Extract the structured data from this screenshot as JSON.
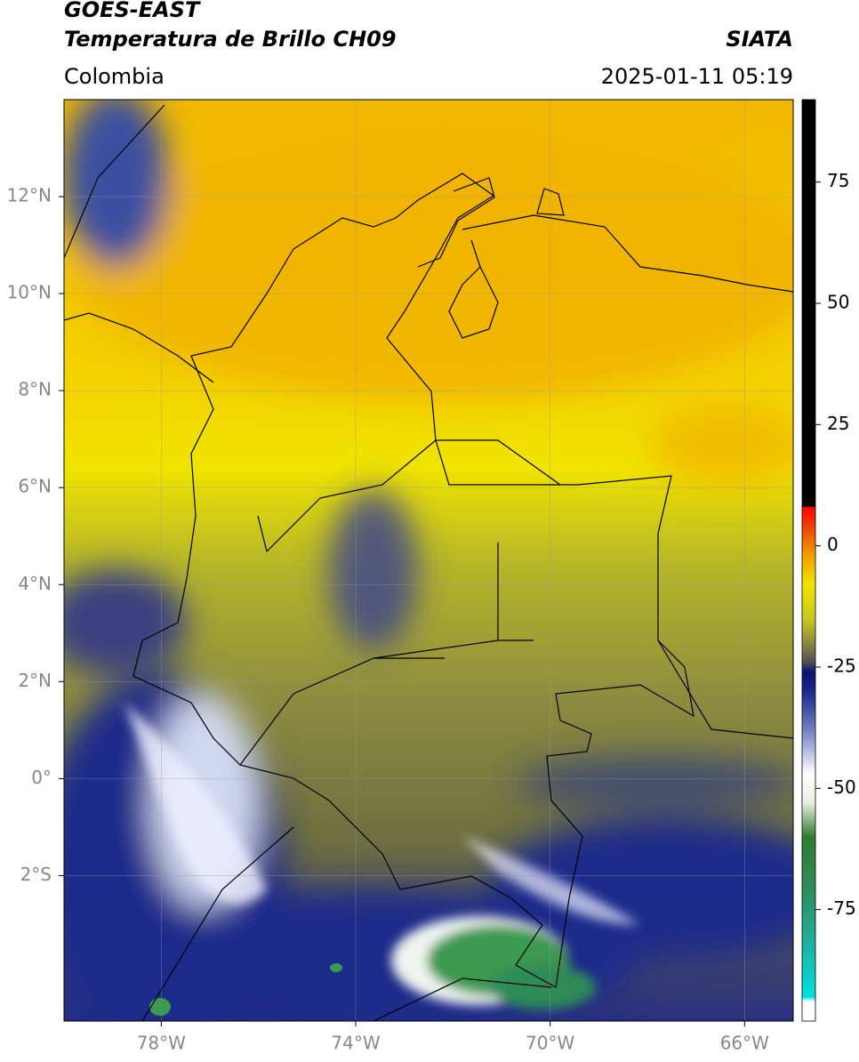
{
  "header": {
    "satellite": "GOES-EAST",
    "product": "Temperatura de Brillo CH09",
    "source": "SIATA",
    "region": "Colombia",
    "datetime": "2025-01-11 05:19"
  },
  "map": {
    "xlim": [
      -80,
      -65
    ],
    "ylim": [
      -5,
      14
    ],
    "xticks": [
      {
        "value": -78,
        "label": "78°W"
      },
      {
        "value": -74,
        "label": "74°W"
      },
      {
        "value": -70,
        "label": "70°W"
      },
      {
        "value": -66,
        "label": "66°W"
      }
    ],
    "yticks": [
      {
        "value": 12,
        "label": "12°N"
      },
      {
        "value": 10,
        "label": "10°N"
      },
      {
        "value": 8,
        "label": "8°N"
      },
      {
        "value": 6,
        "label": "6°N"
      },
      {
        "value": 4,
        "label": "4°N"
      },
      {
        "value": 2,
        "label": "2°N"
      },
      {
        "value": 0,
        "label": "0°"
      },
      {
        "value": -2,
        "label": "2°S"
      }
    ],
    "grid": true
  },
  "colorbar": {
    "clim": [
      -98,
      92
    ],
    "ticks": [
      75,
      50,
      25,
      0,
      -25,
      -50,
      -75
    ],
    "colormap": [
      {
        "value": -98,
        "color": "#ffffff"
      },
      {
        "value": -94,
        "color": "#ffffff"
      },
      {
        "value": -93,
        "color": "#00e0e0"
      },
      {
        "value": -82,
        "color": "#20b0a0"
      },
      {
        "value": -70,
        "color": "#2e8b57"
      },
      {
        "value": -60,
        "color": "#2f7d2f"
      },
      {
        "value": -53,
        "color": "#e8f0e0"
      },
      {
        "value": -47,
        "color": "#ffffff"
      },
      {
        "value": -38,
        "color": "#7080c0"
      },
      {
        "value": -30,
        "color": "#1a2a8a"
      },
      {
        "value": -26,
        "color": "#0a1470"
      },
      {
        "value": -24,
        "color": "#505050"
      },
      {
        "value": -20,
        "color": "#8a8a40"
      },
      {
        "value": -15,
        "color": "#c8c820"
      },
      {
        "value": -8,
        "color": "#f0e400"
      },
      {
        "value": -2,
        "color": "#f0a000"
      },
      {
        "value": 3,
        "color": "#f05000"
      },
      {
        "value": 8,
        "color": "#ff0000"
      },
      {
        "value": 8.1,
        "color": "#000000"
      },
      {
        "value": 92,
        "color": "#000000"
      }
    ]
  }
}
